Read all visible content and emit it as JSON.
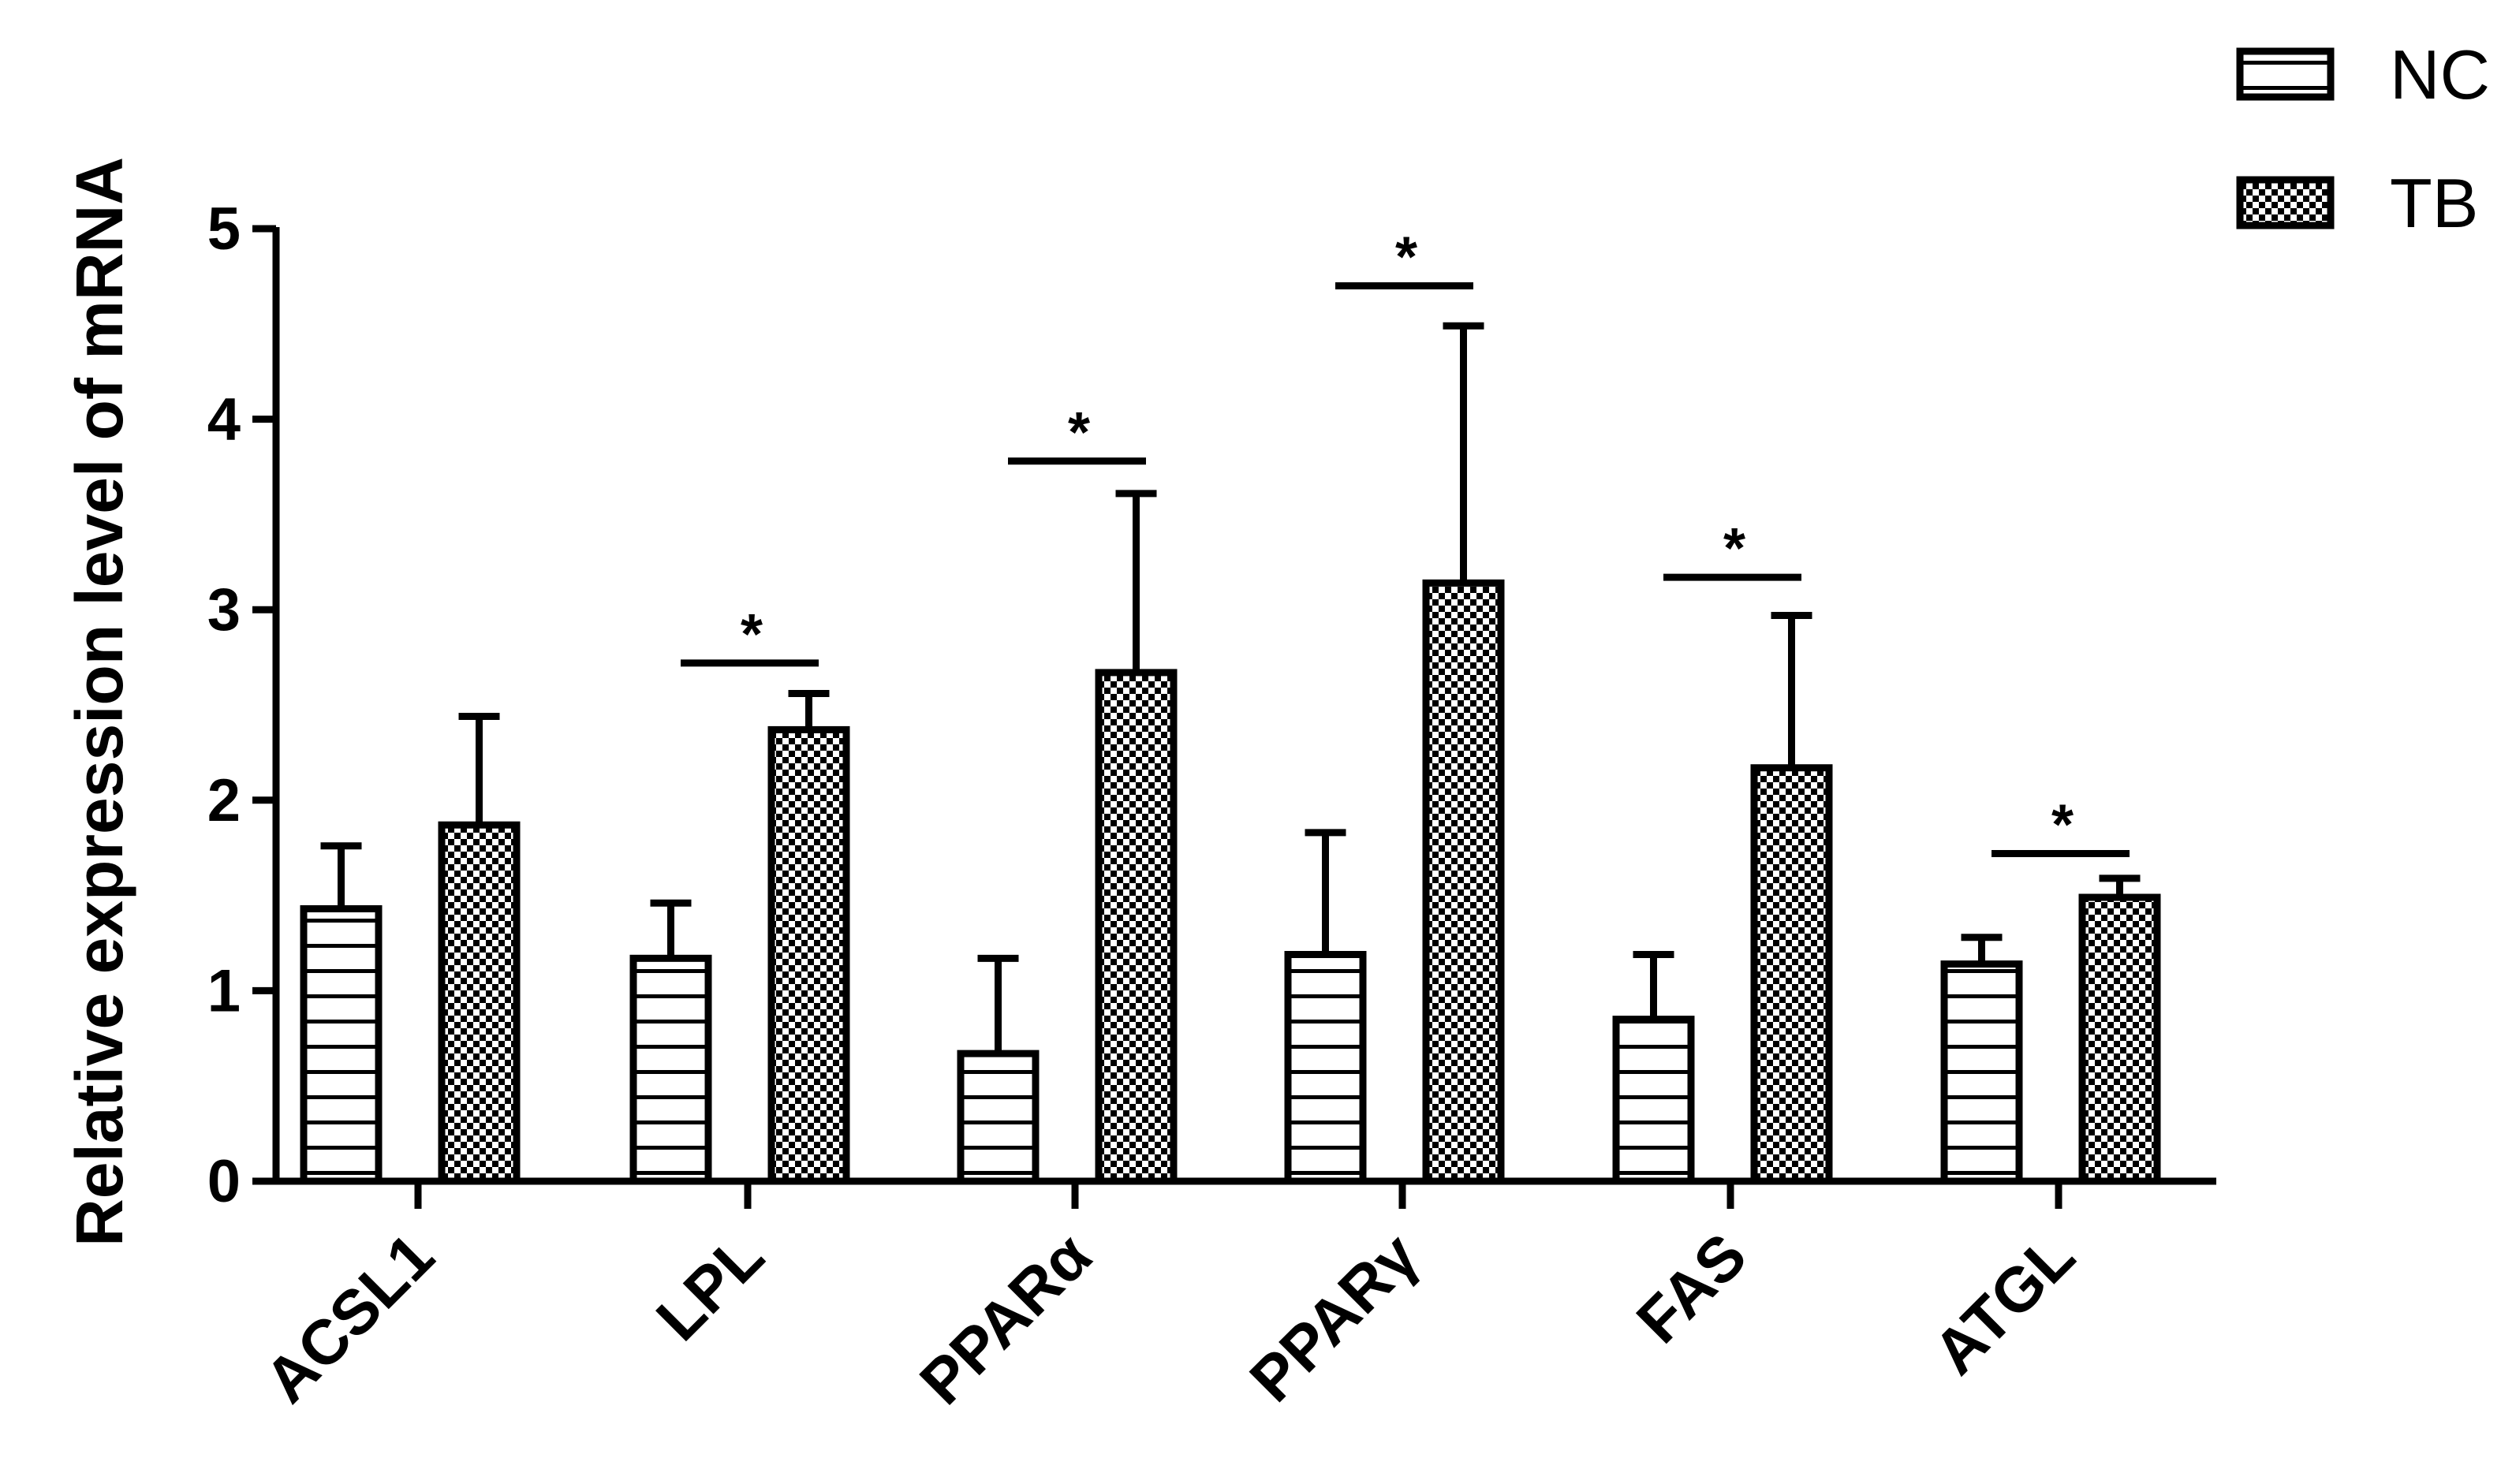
{
  "chart_data": {
    "type": "bar",
    "ylabel": "Relative expression level of mRNA",
    "xlabel": "",
    "ylim": [
      0,
      5
    ],
    "yticks": [
      "0",
      "1",
      "2",
      "3",
      "4",
      "5"
    ],
    "categories": [
      "ACSL1",
      "LPL",
      "PPARα",
      "PPARγ",
      "FAS",
      "ATGL"
    ],
    "series": [
      {
        "name": "NC",
        "pattern": "horizontal-lines",
        "values": [
          1.43,
          1.17,
          0.67,
          1.19,
          0.85,
          1.14
        ],
        "errors": [
          0.33,
          0.29,
          0.5,
          0.64,
          0.34,
          0.14
        ]
      },
      {
        "name": "TB",
        "pattern": "checkerboard",
        "values": [
          1.87,
          2.37,
          2.67,
          3.14,
          2.17,
          1.49
        ],
        "errors": [
          0.57,
          0.19,
          0.94,
          1.35,
          0.8,
          0.1
        ]
      }
    ],
    "significance": [
      {
        "category": "LPL",
        "label": "*",
        "bar_y": 2.72
      },
      {
        "category": "PPARα",
        "label": "*",
        "bar_y": 3.78
      },
      {
        "category": "PPARγ",
        "label": "*",
        "bar_y": 4.7
      },
      {
        "category": "FAS",
        "label": "*",
        "bar_y": 3.17
      },
      {
        "category": "ATGL",
        "label": "*",
        "bar_y": 1.72
      }
    ],
    "legend": {
      "position": "top-right"
    },
    "grid": false,
    "colors": {
      "bar_fill": "#ffffff",
      "pattern": "#000000",
      "axis": "#000000"
    }
  }
}
